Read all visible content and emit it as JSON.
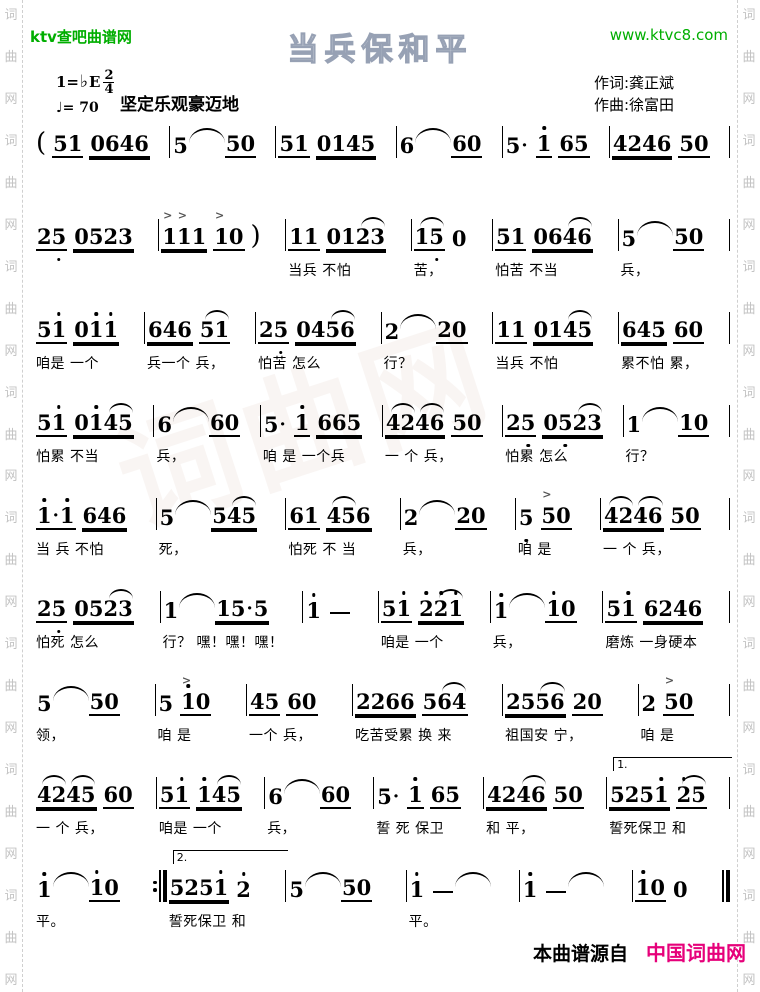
{
  "colors": {
    "green": "#00ae00",
    "brand_pink": "#e6007a",
    "border_gray": "#c3c3c3",
    "title_outline": "#97a1b4"
  },
  "header": {
    "site_left": "ktv查吧曲谱网",
    "site_right": "www.ktvc8.com",
    "title": "当兵保和平",
    "key_prefix": "1=",
    "key_flat": "♭",
    "key_letter": "E",
    "meter_num": "2",
    "meter_den": "4",
    "tempo": "♩= 70",
    "mood": "坚定乐观豪迈地",
    "lyricist": "作词:龚正斌",
    "composer": "作曲:徐富田"
  },
  "border": {
    "chars": [
      "词",
      "曲",
      "网"
    ],
    "repeat": 8
  },
  "watermark": {
    "text": "词曲网"
  },
  "score": {
    "lines": [
      {
        "measures": [
          {
            "n": "( 51/1 0646/2 |",
            "l": ""
          },
          {
            "n": "5 ~ 50/1 |",
            "l": ""
          },
          {
            "n": "51/1 0145/2 |",
            "l": ""
          },
          {
            "n": "6 ~ 60/1 |",
            "l": ""
          },
          {
            "n": "5* 1'/1 65/1 |",
            "l": ""
          },
          {
            "n": "4246/2 50/1 |",
            "l": ""
          }
        ]
      },
      {
        "measures": [
          {
            "n": "25,/1 0523/2 |",
            "l": ""
          },
          {
            "n": "1>1>1/2 1>0/1 ) |",
            "l": ""
          },
          {
            "n": "11/1 012^3/2 |",
            "l": "当兵 不怕"
          },
          {
            "n": "1^5,/1 0 |",
            "l": "苦，"
          },
          {
            "n": "51/1 064^6/2 |",
            "l": "怕苦 不当"
          },
          {
            "n": "5 ~ 50/1 |",
            "l": "兵，"
          }
        ]
      },
      {
        "measures": [
          {
            "n": "51'/1 01'1'/2 |",
            "l": "咱是 一个"
          },
          {
            "n": "646/2 5^1/1 |",
            "l": "兵一个 兵，"
          },
          {
            "n": "25,/1 045^6/2 |",
            "l": "怕苦 怎么"
          },
          {
            "n": "2 ~ 20/1 |",
            "l": "行？"
          },
          {
            "n": "11/1 014^5/2 |",
            "l": "当兵 不怕"
          },
          {
            "n": "645/2 60/1 |",
            "l": "累不怕 累，"
          }
        ]
      },
      {
        "measures": [
          {
            "n": "51'/1 01'4^5/2 |",
            "l": "怕累 不当"
          },
          {
            "n": "6 ~ 60/1 |",
            "l": "兵，"
          },
          {
            "n": "5* 1'/1 665/2 |",
            "l": "咱 是 一个兵"
          },
          {
            "n": "4^24^6/2 50/1 |",
            "l": "一 个 兵，"
          },
          {
            "n": "25,/1 05,2^3/2 |",
            "l": "怕累 怎么"
          },
          {
            "n": "1 ~ 10/1 |",
            "l": "行？"
          }
        ]
      },
      {
        "measures": [
          {
            "n": "1'*1'/1 646/2 |",
            "l": "当 兵 不怕"
          },
          {
            "n": "5 ~ 54^5/2 |",
            "l": "死，"
          },
          {
            "n": "61/1 4^56/2 |",
            "l": "怕死 不 当"
          },
          {
            "n": "2 ~ 20/1 |",
            "l": "兵，"
          },
          {
            "n": "5, 5>0/1 |",
            "l": "咱 是"
          },
          {
            "n": "4^24^6/2 50/1 |",
            "l": "一 个 兵，"
          }
        ]
      },
      {
        "measures": [
          {
            "n": "25,/1 052^3/2 |",
            "l": "怕死 怎么"
          },
          {
            "n": "1 ~ 15*5/2 |",
            "l": "行？ 嘿！嘿！嘿！"
          },
          {
            "n": "1' — |",
            "l": ""
          },
          {
            "n": "51'/1 2'2'^1'/2 |",
            "l": "咱是 一个"
          },
          {
            "n": "1' ~ 1'0/1 |",
            "l": "兵，"
          },
          {
            "n": "51'/1 6246/2 |",
            "l": "磨炼 一身硬本"
          }
        ]
      },
      {
        "measures": [
          {
            "n": "5 ~ 50/1 |",
            "l": "领，"
          },
          {
            "n": "5 1'>0/1 |",
            "l": "咱 是"
          },
          {
            "n": "45/1 60/1 |",
            "l": "一个 兵，"
          },
          {
            "n": "2266/2 56^4/1 |",
            "l": "吃苦受累 换 来"
          },
          {
            "n": "255^6/2 20/1 |",
            "l": "祖国安 宁，"
          },
          {
            "n": "2 5>0/1 |",
            "l": "咱 是"
          }
        ]
      },
      {
        "measures": [
          {
            "n": "4^24^5/2 60/1 |",
            "l": "一 个 兵，"
          },
          {
            "n": "51'/1 1'4^5/2 |",
            "l": "咱是 一个"
          },
          {
            "n": "6 ~ 60/1 |",
            "l": "兵，"
          },
          {
            "n": "5* 1'/1 65/1 |",
            "l": "誓 死 保卫"
          },
          {
            "n": "424^6/2 50/1 |",
            "l": "和 平，"
          },
          {
            "n": "5251'/2 2'^5/1 |",
            "l": "誓死保卫 和",
            "v": "1."
          }
        ]
      },
      {
        "measures": [
          {
            "n": "1' ~ 1'0/1 :‖",
            "l": "平。"
          },
          {
            "n": "5251'/2 2' |",
            "l": "誓死保卫 和",
            "v": "2."
          },
          {
            "n": "5 ~ 50/1 |",
            "l": ""
          },
          {
            "n": "1' — ~ |",
            "l": "平。"
          },
          {
            "n": "1' — ~ |",
            "l": ""
          },
          {
            "n": "1'0/1 0 ‖",
            "l": ""
          }
        ]
      }
    ]
  },
  "footer": {
    "prefix": "本曲谱源自",
    "brand": "中国词曲网"
  }
}
